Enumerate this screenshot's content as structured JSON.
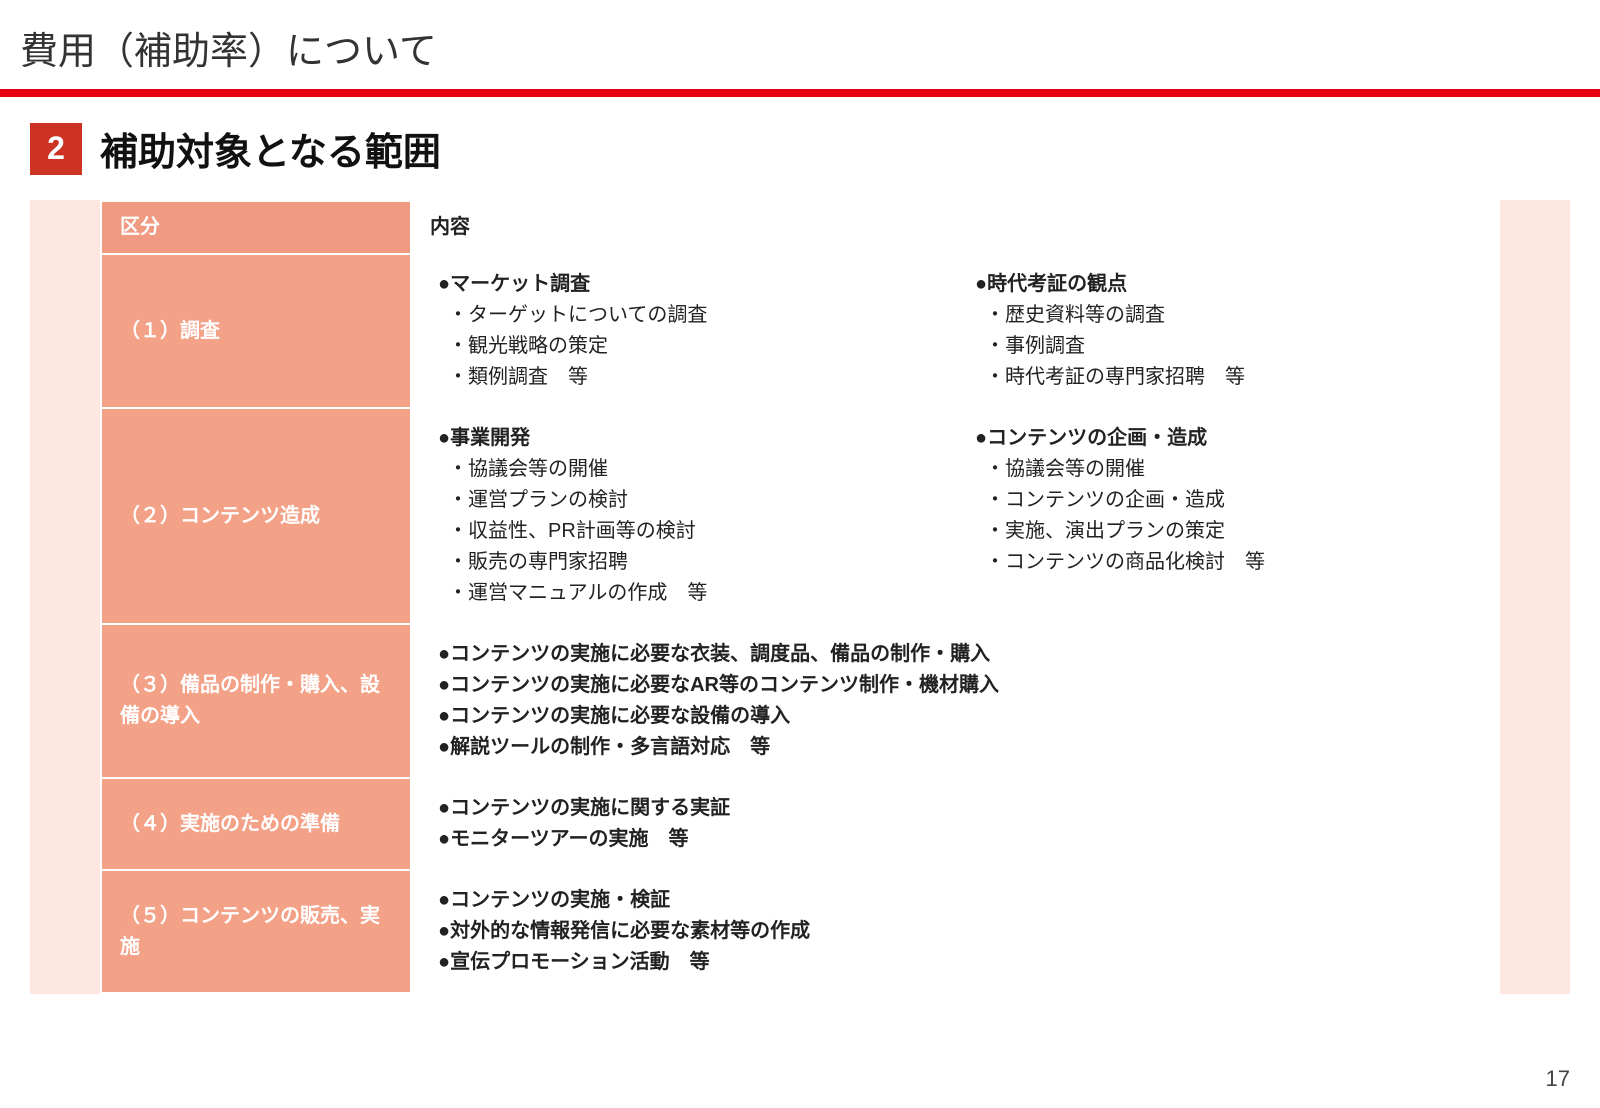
{
  "colors": {
    "red_rule": "#e60012",
    "section_box": "#cc3322",
    "table_bg": "#fde7e0",
    "cat_header": "#f19a82",
    "cat_cell": "#f3a187",
    "content_bg": "#ffffff",
    "text": "#222222",
    "border": "#ffffff"
  },
  "typography": {
    "page_title_size": 38,
    "section_title_size": 38,
    "body_size": 20
  },
  "page_title": "費用（補助率）について",
  "section": {
    "number": "2",
    "title": "補助対象となる範囲"
  },
  "table": {
    "headers": {
      "col1": "区分",
      "col2": "内容"
    },
    "rows": [
      {
        "category": "（１）調査",
        "left": {
          "heading": "●マーケット調査",
          "items": [
            "・ターゲットについての調査",
            "・観光戦略の策定",
            "・類例調査　等"
          ]
        },
        "right": {
          "heading": "●時代考証の観点",
          "items": [
            "・歴史資料等の調査",
            "・事例調査",
            "・時代考証の専門家招聘　等"
          ]
        }
      },
      {
        "category": "（２）コンテンツ造成",
        "left": {
          "heading": "●事業開発",
          "items": [
            "・協議会等の開催",
            "・運営プランの検討",
            "・収益性、PR計画等の検討",
            "・販売の専門家招聘",
            "・運営マニュアルの作成　等"
          ]
        },
        "right": {
          "heading": "●コンテンツの企画・造成",
          "items": [
            "・協議会等の開催",
            "・コンテンツの企画・造成",
            "・実施、演出プランの策定",
            "・コンテンツの商品化検討　等"
          ]
        }
      },
      {
        "category": "（３）備品の制作・購入、設備の導入",
        "items": [
          "●コンテンツの実施に必要な衣装、調度品、備品の制作・購入",
          "●コンテンツの実施に必要なAR等のコンテンツ制作・機材購入",
          "●コンテンツの実施に必要な設備の導入",
          "●解説ツールの制作・多言語対応　等"
        ]
      },
      {
        "category": "（４）実施のための準備",
        "items": [
          "●コンテンツの実施に関する実証",
          "●モニターツアーの実施　等"
        ]
      },
      {
        "category": "（５）コンテンツの販売、実施",
        "items": [
          "●コンテンツの実施・検証",
          "●対外的な情報発信に必要な素材等の作成",
          "●宣伝プロモーション活動　等"
        ]
      }
    ]
  },
  "page_number": "17"
}
